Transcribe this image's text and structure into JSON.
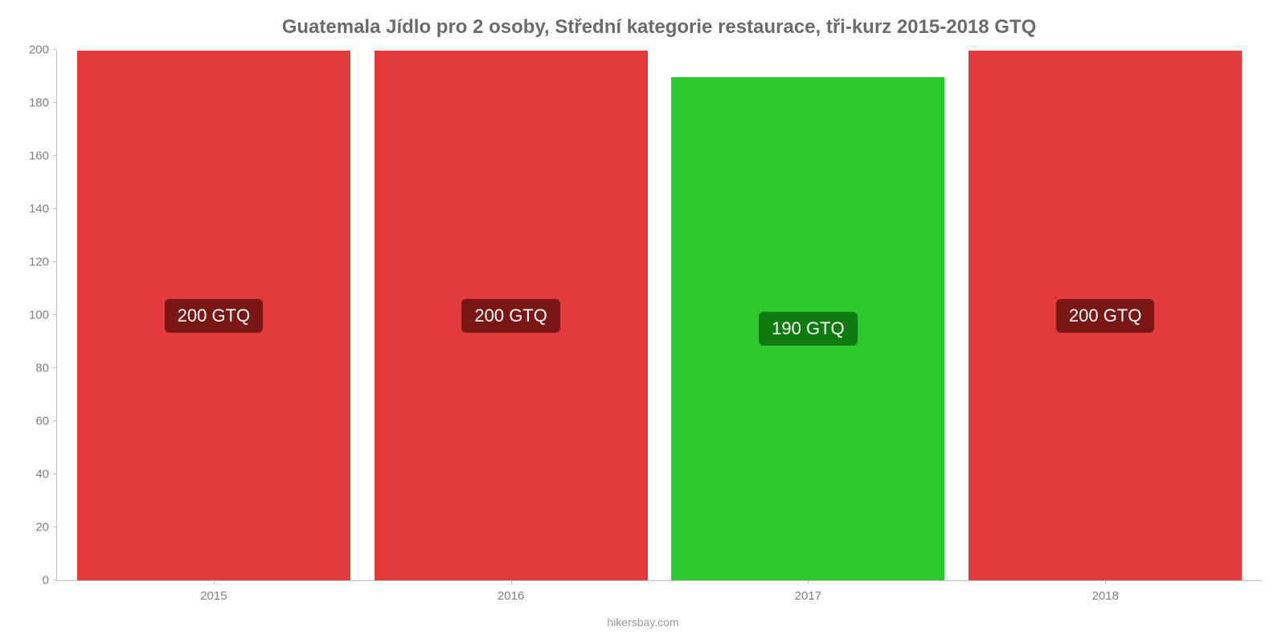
{
  "chart": {
    "type": "bar",
    "title": "Guatemala Jídlo pro 2 osoby, Střední kategorie restaurace, tři-kurz 2015-2018 GTQ",
    "title_color": "#6b6b6b",
    "title_fontsize": 24,
    "background_color": "#ffffff",
    "axis_color": "#c0c0c0",
    "tick_label_color": "#808080",
    "tick_fontsize": 15,
    "ylim": [
      0,
      200
    ],
    "ytick_step": 20,
    "yticks": [
      0,
      20,
      40,
      60,
      80,
      100,
      120,
      140,
      160,
      180,
      200
    ],
    "categories": [
      "2015",
      "2016",
      "2017",
      "2018"
    ],
    "values": [
      200,
      200,
      190,
      200
    ],
    "bar_colors": [
      "#e33b3b",
      "#e33b3b",
      "#2cca2c",
      "#e33b3b"
    ],
    "bar_labels": [
      "200 GTQ",
      "200 GTQ",
      "190 GTQ",
      "200 GTQ"
    ],
    "badge_colors": [
      "#7a1616",
      "#7a1616",
      "#0f7a0f",
      "#7a1616"
    ],
    "badge_text_color": "#ffffff",
    "badge_fontsize": 22,
    "bar_width": 0.92,
    "source": "hikersbay.com",
    "source_color": "#9a9a9a",
    "source_fontsize": 14
  }
}
